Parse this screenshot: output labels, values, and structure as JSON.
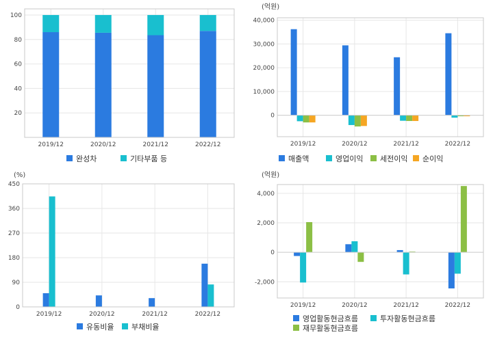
{
  "chart_data": [
    {
      "type": "bar",
      "stacked": true,
      "unit_label": "",
      "categories": [
        "2019/12",
        "2020/12",
        "2021/12",
        "2022/12"
      ],
      "series": [
        {
          "name": "완성차",
          "color": "#2b7be0",
          "values": [
            86,
            85.5,
            83.5,
            87
          ]
        },
        {
          "name": "기타부품 등",
          "color": "#19bfcf",
          "values": [
            14,
            14.5,
            16.5,
            13
          ]
        }
      ],
      "ylim": [
        0,
        105
      ],
      "yticks": [
        20,
        40,
        60,
        80,
        100
      ],
      "ytick_labels": [
        "20",
        "40",
        "60",
        "80",
        "100"
      ],
      "grid": true,
      "legend_position": "bottom"
    },
    {
      "type": "bar",
      "unit_label": "(억원)",
      "categories": [
        "2019/12",
        "2020/12",
        "2021/12",
        "2022/12"
      ],
      "series": [
        {
          "name": "매출액",
          "color": "#2b7be0",
          "values": [
            36200,
            29400,
            24400,
            34500
          ]
        },
        {
          "name": "영업이익",
          "color": "#19bfcf",
          "values": [
            -2500,
            -4100,
            -2300,
            -1000
          ]
        },
        {
          "name": "세전이익",
          "color": "#8cbf45",
          "values": [
            -3000,
            -4700,
            -2400,
            -400
          ]
        },
        {
          "name": "순이익",
          "color": "#f5a623",
          "values": [
            -3000,
            -4500,
            -2400,
            -400
          ]
        }
      ],
      "ylim": [
        -9000,
        41000
      ],
      "yticks": [
        0,
        10000,
        20000,
        30000,
        40000
      ],
      "ytick_labels": [
        "0",
        "10,000",
        "20,000",
        "30,000",
        "40,000"
      ],
      "grid": true,
      "legend_position": "bottom"
    },
    {
      "type": "bar",
      "unit_label": "(%)",
      "categories": [
        "2019/12",
        "2020/12",
        "2021/12",
        "2022/12"
      ],
      "series": [
        {
          "name": "유동비율",
          "color": "#2b7be0",
          "values": [
            50,
            42,
            32,
            158
          ]
        },
        {
          "name": "부채비율",
          "color": "#19bfcf",
          "values": [
            404,
            0,
            0,
            82
          ]
        }
      ],
      "ylim": [
        0,
        450
      ],
      "yticks": [
        0,
        90,
        180,
        270,
        360,
        450
      ],
      "ytick_labels": [
        "0",
        "90",
        "180",
        "270",
        "360",
        "450"
      ],
      "grid": true,
      "legend_position": "bottom"
    },
    {
      "type": "bar",
      "unit_label": "(억원)",
      "categories": [
        "2019/12",
        "2020/12",
        "2021/12",
        "2022/12"
      ],
      "series": [
        {
          "name": "영업활동현금흐름",
          "color": "#2b7be0",
          "values": [
            -250,
            550,
            150,
            -2450
          ]
        },
        {
          "name": "투자활동현금흐름",
          "color": "#19bfcf",
          "values": [
            -2050,
            750,
            -1500,
            -1450
          ]
        },
        {
          "name": "재무활동현금흐름",
          "color": "#8cbf45",
          "values": [
            2050,
            -650,
            50,
            4500
          ]
        }
      ],
      "ylim": [
        -3100,
        4600
      ],
      "yticks": [
        -2000,
        0,
        2000,
        4000
      ],
      "ytick_labels": [
        "-2,000",
        "0",
        "2,000",
        "4,000"
      ],
      "grid": true,
      "legend_position": "bottom"
    }
  ]
}
